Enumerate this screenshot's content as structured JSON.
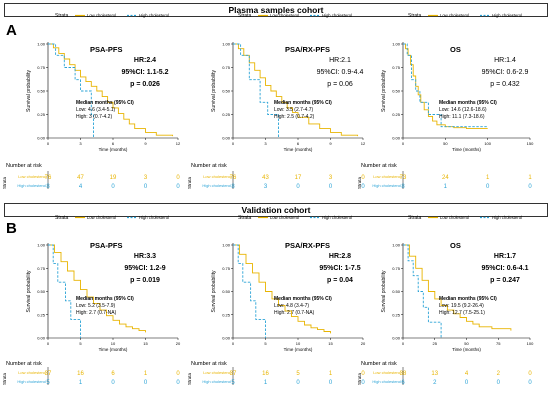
{
  "banners": {
    "top": "Plasma samples cohort",
    "bottom": "Validation cohort"
  },
  "panel_letters": [
    "A",
    "B"
  ],
  "legend": {
    "strata_label": "Strata",
    "low": "Low cholesterol",
    "high": "High cholesterol"
  },
  "colors": {
    "low": "#E8B400",
    "high": "#2BA3D6"
  },
  "common": {
    "ylabel": "Survival probability",
    "xlabel": "Time (months)",
    "risk_title": "Number at risk",
    "risk_axis_label": "Strata",
    "median_title": "Median months  (95% CI)"
  },
  "chart_data": [
    {
      "type": "line",
      "panel": "A",
      "title": "PSA-PFS",
      "hr": "HR:2.4",
      "ci": "95%CI: 1.1-5.2",
      "p": "p = 0.026",
      "median_low": "Low: 4.6 (3.4-5.1)",
      "median_high": "High: 3 (0.7-4.2)",
      "xlim": [
        0,
        12
      ],
      "xticks": [
        "0",
        "3",
        "6",
        "9",
        "12"
      ],
      "ylim": [
        0,
        1
      ],
      "yticks": [
        "0.00",
        "0.25",
        "0.50",
        "0.75",
        "1.00"
      ],
      "series": [
        {
          "name": "Low cholesterol",
          "x": [
            0,
            0.5,
            1,
            1.5,
            2,
            2.5,
            3,
            3.5,
            4,
            4.5,
            5,
            5.5,
            6,
            6.5,
            7,
            7.5,
            8,
            9,
            10,
            11.5
          ],
          "y": [
            1,
            0.96,
            0.9,
            0.84,
            0.78,
            0.72,
            0.65,
            0.6,
            0.55,
            0.5,
            0.44,
            0.38,
            0.32,
            0.26,
            0.2,
            0.15,
            0.1,
            0.06,
            0.03,
            0.02
          ]
        },
        {
          "name": "High cholesterol",
          "x": [
            0,
            0.7,
            1.5,
            2.5,
            3,
            4,
            4.2
          ],
          "y": [
            1,
            0.88,
            0.75,
            0.62,
            0.5,
            0.25,
            0
          ]
        }
      ],
      "risk_low": [
        "76",
        "47",
        "19",
        "3",
        "0"
      ],
      "risk_high": [
        "8",
        "4",
        "0",
        "0",
        "0"
      ]
    },
    {
      "type": "line",
      "panel": "A",
      "title": "PSA/RX-PFS",
      "hr": "HR:2.1",
      "ci": "95%CI: 0.9-4.4",
      "p": "p = 0.06",
      "median_low": "Low: 3.5 (2.7-4.7)",
      "median_high": "High: 2.5 (0.7-4.2)",
      "xlim": [
        0,
        12
      ],
      "xticks": [
        "0",
        "3",
        "6",
        "9",
        "12"
      ],
      "ylim": [
        0,
        1
      ],
      "yticks": [
        "0.00",
        "0.25",
        "0.50",
        "0.75",
        "1.00"
      ],
      "series": [
        {
          "name": "Low cholesterol",
          "x": [
            0,
            0.5,
            1,
            1.5,
            2,
            2.5,
            3,
            3.5,
            4,
            4.5,
            5,
            5.5,
            6,
            7,
            8,
            9,
            10,
            11.5
          ],
          "y": [
            1,
            0.95,
            0.88,
            0.8,
            0.72,
            0.64,
            0.56,
            0.5,
            0.44,
            0.38,
            0.32,
            0.27,
            0.22,
            0.15,
            0.1,
            0.06,
            0.03,
            0.02
          ]
        },
        {
          "name": "High cholesterol",
          "x": [
            0,
            0.7,
            1.5,
            2.5,
            3.2,
            4.2
          ],
          "y": [
            1,
            0.88,
            0.62,
            0.38,
            0.25,
            0
          ]
        }
      ],
      "risk_low": [
        "76",
        "43",
        "17",
        "3",
        "0"
      ],
      "risk_high": [
        "8",
        "3",
        "0",
        "0",
        "0"
      ]
    },
    {
      "type": "line",
      "panel": "A",
      "title": "OS",
      "hr": "HR:1.4",
      "ci": "95%CI: 0.6-2.9",
      "p": "p = 0.432",
      "median_low": "Low: 14.6 (12.6-18.6)",
      "median_high": "High: 11.1 (7.3-18.6)",
      "xlim": [
        0,
        150
      ],
      "xticks": [
        "0",
        "50",
        "100",
        "150"
      ],
      "ylim": [
        0,
        1
      ],
      "yticks": [
        "0.00",
        "0.25",
        "0.50",
        "0.75",
        "1.00"
      ],
      "series": [
        {
          "name": "Low cholesterol",
          "x": [
            0,
            3,
            6,
            9,
            12,
            15,
            18,
            21,
            25,
            30,
            35,
            40,
            50,
            60,
            75,
            100
          ],
          "y": [
            1,
            0.95,
            0.88,
            0.78,
            0.66,
            0.55,
            0.46,
            0.38,
            0.3,
            0.23,
            0.18,
            0.14,
            0.12,
            0.11,
            0.1,
            0.1
          ]
        },
        {
          "name": "High cholesterol",
          "x": [
            0,
            5,
            10,
            15,
            20,
            30,
            45,
            60,
            100
          ],
          "y": [
            1,
            0.88,
            0.62,
            0.5,
            0.38,
            0.25,
            0.12,
            0.12,
            0.12
          ]
        }
      ],
      "risk_low": [
        "73",
        "24",
        "1",
        "1"
      ],
      "risk_high": [
        "8",
        "1",
        "0",
        "0"
      ]
    },
    {
      "type": "line",
      "panel": "B",
      "title": "PSA-PFS",
      "hr": "HR:3.3",
      "ci": "95%CI: 1.2-9",
      "p": "p = 0.019",
      "median_low": "Low: 5.2 (3.5-7.9)",
      "median_high": "High: 2.7 (0.7-NA)",
      "xlim": [
        0,
        20
      ],
      "xticks": [
        "0",
        "5",
        "10",
        "15",
        "20"
      ],
      "ylim": [
        0,
        1
      ],
      "yticks": [
        "0.00",
        "0.25",
        "0.50",
        "0.75",
        "1.00"
      ],
      "series": [
        {
          "name": "Low cholesterol",
          "x": [
            0,
            1,
            2,
            3,
            4,
            5,
            6,
            7,
            8,
            9,
            10,
            11,
            12,
            13,
            14,
            15
          ],
          "y": [
            1,
            0.92,
            0.82,
            0.72,
            0.62,
            0.52,
            0.44,
            0.37,
            0.3,
            0.24,
            0.19,
            0.15,
            0.12,
            0.1,
            0.08,
            0.06
          ]
        },
        {
          "name": "High cholesterol",
          "x": [
            0,
            0.8,
            1.5,
            2.7,
            3.5,
            5
          ],
          "y": [
            1,
            0.8,
            0.6,
            0.4,
            0.2,
            0
          ]
        }
      ],
      "risk_low": [
        "37",
        "16",
        "6",
        "1",
        "0"
      ],
      "risk_high": [
        "5",
        "1",
        "0",
        "0",
        "0"
      ]
    },
    {
      "type": "line",
      "panel": "B",
      "title": "PSA/RX-PFS",
      "hr": "HR:2.8",
      "ci": "95%CI: 1-7.5",
      "p": "p = 0.04",
      "median_low": "Low: 4.8 (3.4-7)",
      "median_high": "High: 2.7 (0.7-NA)",
      "xlim": [
        0,
        20
      ],
      "xticks": [
        "0",
        "5",
        "10",
        "15",
        "20"
      ],
      "ylim": [
        0,
        1
      ],
      "yticks": [
        "0.00",
        "0.25",
        "0.50",
        "0.75",
        "1.00"
      ],
      "series": [
        {
          "name": "Low cholesterol",
          "x": [
            0,
            1,
            2,
            3,
            4,
            5,
            6,
            7,
            8,
            9,
            10,
            11,
            12,
            13,
            14,
            15
          ],
          "y": [
            1,
            0.9,
            0.8,
            0.7,
            0.6,
            0.5,
            0.42,
            0.35,
            0.29,
            0.23,
            0.18,
            0.14,
            0.11,
            0.09,
            0.07,
            0.05
          ]
        },
        {
          "name": "High cholesterol",
          "x": [
            0,
            0.8,
            1.5,
            2.7,
            3.5,
            5
          ],
          "y": [
            1,
            0.8,
            0.6,
            0.4,
            0.2,
            0
          ]
        }
      ],
      "risk_low": [
        "37",
        "16",
        "5",
        "1",
        "0"
      ],
      "risk_high": [
        "5",
        "1",
        "0",
        "0",
        "0"
      ]
    },
    {
      "type": "line",
      "panel": "B",
      "title": "OS",
      "hr": "HR:1.7",
      "ci": "95%CI: 0.6-4.1",
      "p": "p = 0.247",
      "median_low": "Low: 19.5 (9.2-26.4)",
      "median_high": "High: 12.7 (7.5-25.1)",
      "xlim": [
        0,
        100
      ],
      "xticks": [
        "0",
        "25",
        "50",
        "75",
        "100"
      ],
      "ylim": [
        0,
        1
      ],
      "yticks": [
        "0.00",
        "0.25",
        "0.50",
        "0.75",
        "1.00"
      ],
      "series": [
        {
          "name": "Low cholesterol",
          "x": [
            0,
            5,
            10,
            15,
            20,
            25,
            30,
            35,
            40,
            45,
            50,
            55,
            60,
            70,
            85
          ],
          "y": [
            1,
            0.88,
            0.75,
            0.62,
            0.5,
            0.42,
            0.35,
            0.3,
            0.26,
            0.22,
            0.18,
            0.15,
            0.12,
            0.1,
            0.08
          ]
        },
        {
          "name": "High cholesterol",
          "x": [
            0,
            4,
            8,
            12,
            16,
            20,
            25,
            30
          ],
          "y": [
            1,
            0.83,
            0.67,
            0.5,
            0.33,
            0.17,
            0.17,
            0
          ]
        }
      ],
      "risk_low": [
        "38",
        "13",
        "4",
        "2",
        "0"
      ],
      "risk_high": [
        "6",
        "2",
        "0",
        "0",
        "0"
      ]
    }
  ]
}
